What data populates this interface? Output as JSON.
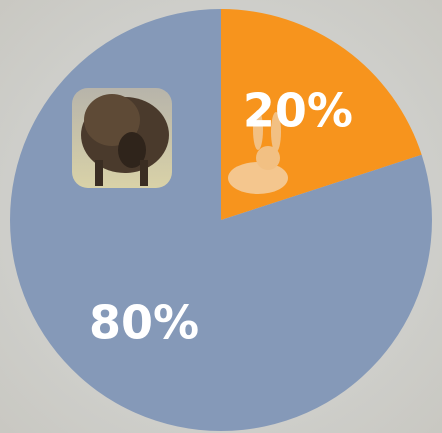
{
  "chart_data": {
    "type": "pie",
    "values": [
      20,
      80
    ],
    "value_labels": [
      "20%",
      "80%"
    ],
    "colors": [
      "#f7941d",
      "#8599b8"
    ]
  }
}
